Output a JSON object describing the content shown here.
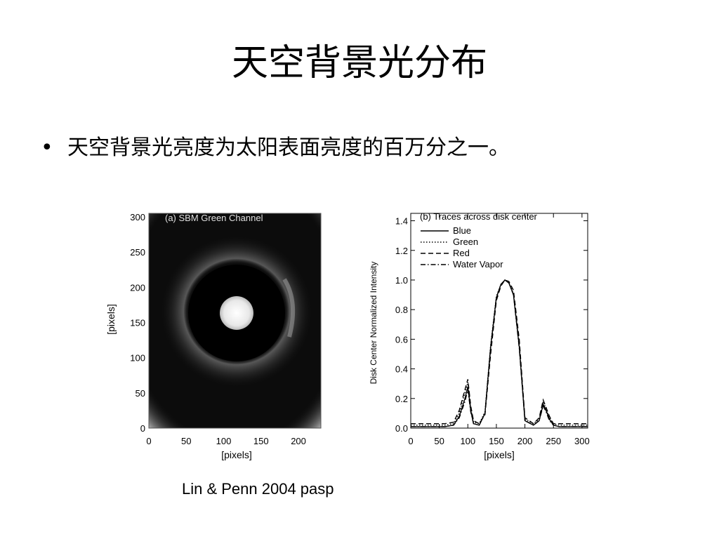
{
  "slide": {
    "title": "天空背景光分布",
    "bullet": "天空背景光亮度为太阳表面亮度的百万分之一。",
    "caption": "Lin & Penn 2004 pasp"
  },
  "panel_a": {
    "title": "(a) SBM Green Channel",
    "xlabel": "[pixels]",
    "ylabel": "[pixels]",
    "x_ticks": [
      0,
      50,
      100,
      150,
      200
    ],
    "y_ticks": [
      0,
      50,
      100,
      150,
      200,
      250,
      300
    ],
    "xlim": [
      0,
      230
    ],
    "ylim": [
      0,
      305
    ]
  },
  "chart_data": {
    "type": "line",
    "title": "(b) Traces across disk center",
    "xlabel": "[pixels]",
    "ylabel": "Disk Center Normalized Intensity",
    "xlim": [
      0,
      310
    ],
    "ylim": [
      0,
      1.45
    ],
    "x_ticks": [
      0,
      50,
      100,
      150,
      200,
      250,
      300
    ],
    "y_ticks": [
      0.0,
      0.2,
      0.4,
      0.6,
      0.8,
      1.0,
      1.2,
      1.4
    ],
    "y_tick_labels": [
      "0.0",
      "0.2",
      "0.4",
      "0.6",
      "0.8",
      "1.0",
      "1.2",
      "1.4"
    ],
    "legend_position": "top-left",
    "grid": false,
    "series": [
      {
        "name": "Blue",
        "style": "solid",
        "x": [
          0,
          30,
          60,
          75,
          85,
          95,
          100,
          105,
          110,
          120,
          130,
          140,
          150,
          158,
          165,
          172,
          180,
          190,
          200,
          215,
          225,
          232,
          237,
          243,
          250,
          260,
          280,
          310
        ],
        "y": [
          0.01,
          0.01,
          0.01,
          0.02,
          0.08,
          0.2,
          0.28,
          0.12,
          0.03,
          0.02,
          0.1,
          0.55,
          0.88,
          0.97,
          1.0,
          0.98,
          0.9,
          0.55,
          0.05,
          0.02,
          0.05,
          0.16,
          0.12,
          0.06,
          0.02,
          0.01,
          0.01,
          0.01
        ]
      },
      {
        "name": "Green",
        "style": "dotted",
        "x": [
          0,
          30,
          60,
          75,
          85,
          95,
          100,
          105,
          110,
          120,
          130,
          140,
          150,
          158,
          165,
          172,
          180,
          190,
          200,
          215,
          225,
          232,
          237,
          243,
          250,
          260,
          280,
          310
        ],
        "y": [
          0.02,
          0.02,
          0.02,
          0.03,
          0.1,
          0.24,
          0.31,
          0.14,
          0.04,
          0.03,
          0.11,
          0.56,
          0.89,
          0.97,
          1.0,
          0.98,
          0.91,
          0.57,
          0.06,
          0.03,
          0.06,
          0.18,
          0.13,
          0.07,
          0.03,
          0.02,
          0.02,
          0.02
        ]
      },
      {
        "name": "Red",
        "style": "dashed",
        "x": [
          0,
          30,
          60,
          75,
          85,
          95,
          100,
          105,
          110,
          120,
          130,
          140,
          150,
          158,
          165,
          172,
          180,
          190,
          200,
          215,
          225,
          232,
          237,
          243,
          250,
          260,
          280,
          310
        ],
        "y": [
          0.03,
          0.03,
          0.03,
          0.04,
          0.12,
          0.26,
          0.33,
          0.15,
          0.05,
          0.03,
          0.09,
          0.5,
          0.86,
          0.96,
          1.0,
          0.99,
          0.93,
          0.6,
          0.07,
          0.03,
          0.07,
          0.19,
          0.14,
          0.08,
          0.03,
          0.03,
          0.03,
          0.03
        ]
      },
      {
        "name": "Water Vapor",
        "style": "dashdot",
        "x": [
          0,
          30,
          60,
          75,
          85,
          95,
          100,
          105,
          110,
          120,
          130,
          140,
          150,
          158,
          165,
          172,
          180,
          190,
          200,
          215,
          225,
          232,
          237,
          243,
          250,
          260,
          280,
          310
        ],
        "y": [
          0.01,
          0.01,
          0.01,
          0.02,
          0.07,
          0.18,
          0.26,
          0.11,
          0.03,
          0.02,
          0.1,
          0.54,
          0.88,
          0.97,
          1.0,
          0.98,
          0.9,
          0.54,
          0.05,
          0.02,
          0.05,
          0.15,
          0.11,
          0.05,
          0.02,
          0.01,
          0.01,
          0.01
        ]
      }
    ]
  }
}
